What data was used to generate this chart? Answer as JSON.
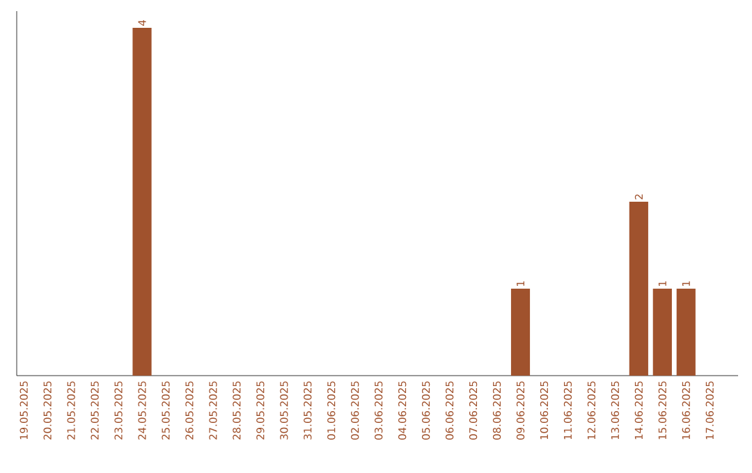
{
  "chart_data": {
    "type": "bar",
    "categories": [
      "19.05.2025",
      "20.05.2025",
      "21.05.2025",
      "22.05.2025",
      "23.05.2025",
      "24.05.2025",
      "25.05.2025",
      "26.05.2025",
      "27.05.2025",
      "28.05.2025",
      "29.05.2025",
      "30.05.2025",
      "31.05.2025",
      "01.06.2025",
      "02.06.2025",
      "03.06.2025",
      "04.06.2025",
      "05.06.2025",
      "06.06.2025",
      "07.06.2025",
      "08.06.2025",
      "09.06.2025",
      "10.06.2025",
      "11.06.2025",
      "12.06.2025",
      "13.06.2025",
      "14.06.2025",
      "15.06.2025",
      "16.06.2025",
      "17.06.2025"
    ],
    "values": [
      0,
      0,
      0,
      0,
      0,
      4,
      0,
      0,
      0,
      0,
      0,
      0,
      0,
      0,
      0,
      0,
      0,
      0,
      0,
      0,
      0,
      1,
      0,
      0,
      0,
      0,
      2,
      1,
      1,
      0
    ],
    "value_labels": [
      null,
      null,
      null,
      null,
      null,
      "4",
      null,
      null,
      null,
      null,
      null,
      null,
      null,
      null,
      null,
      null,
      null,
      null,
      null,
      null,
      null,
      "1",
      null,
      null,
      null,
      null,
      "2",
      "1",
      "1",
      null
    ],
    "color": "#a0522d"
  }
}
